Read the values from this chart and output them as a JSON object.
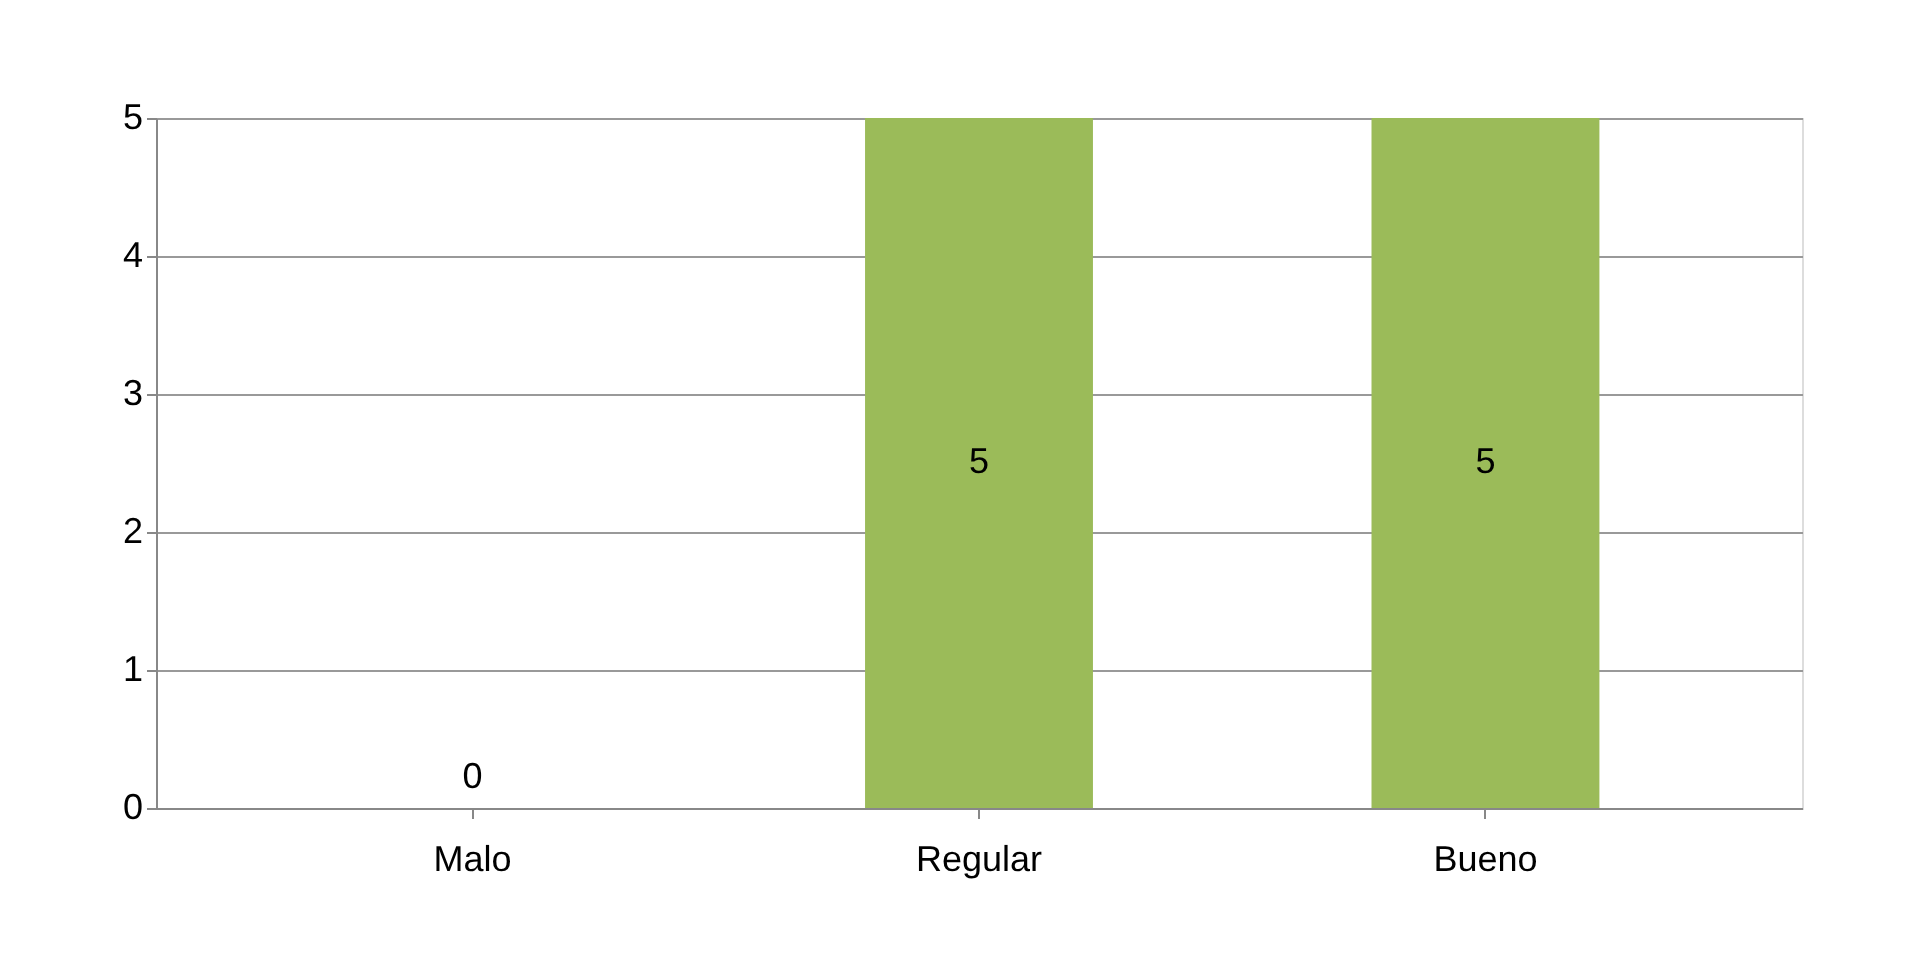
{
  "chart_data": {
    "type": "bar",
    "categories": [
      "Malo",
      "Regular",
      "Bueno"
    ],
    "values": [
      0,
      5,
      5
    ],
    "color": "#9bbb59",
    "ylim": [
      0,
      5
    ],
    "yticks": [
      0,
      1,
      2,
      3,
      4,
      5
    ],
    "grid": "y",
    "data_labels": true
  }
}
